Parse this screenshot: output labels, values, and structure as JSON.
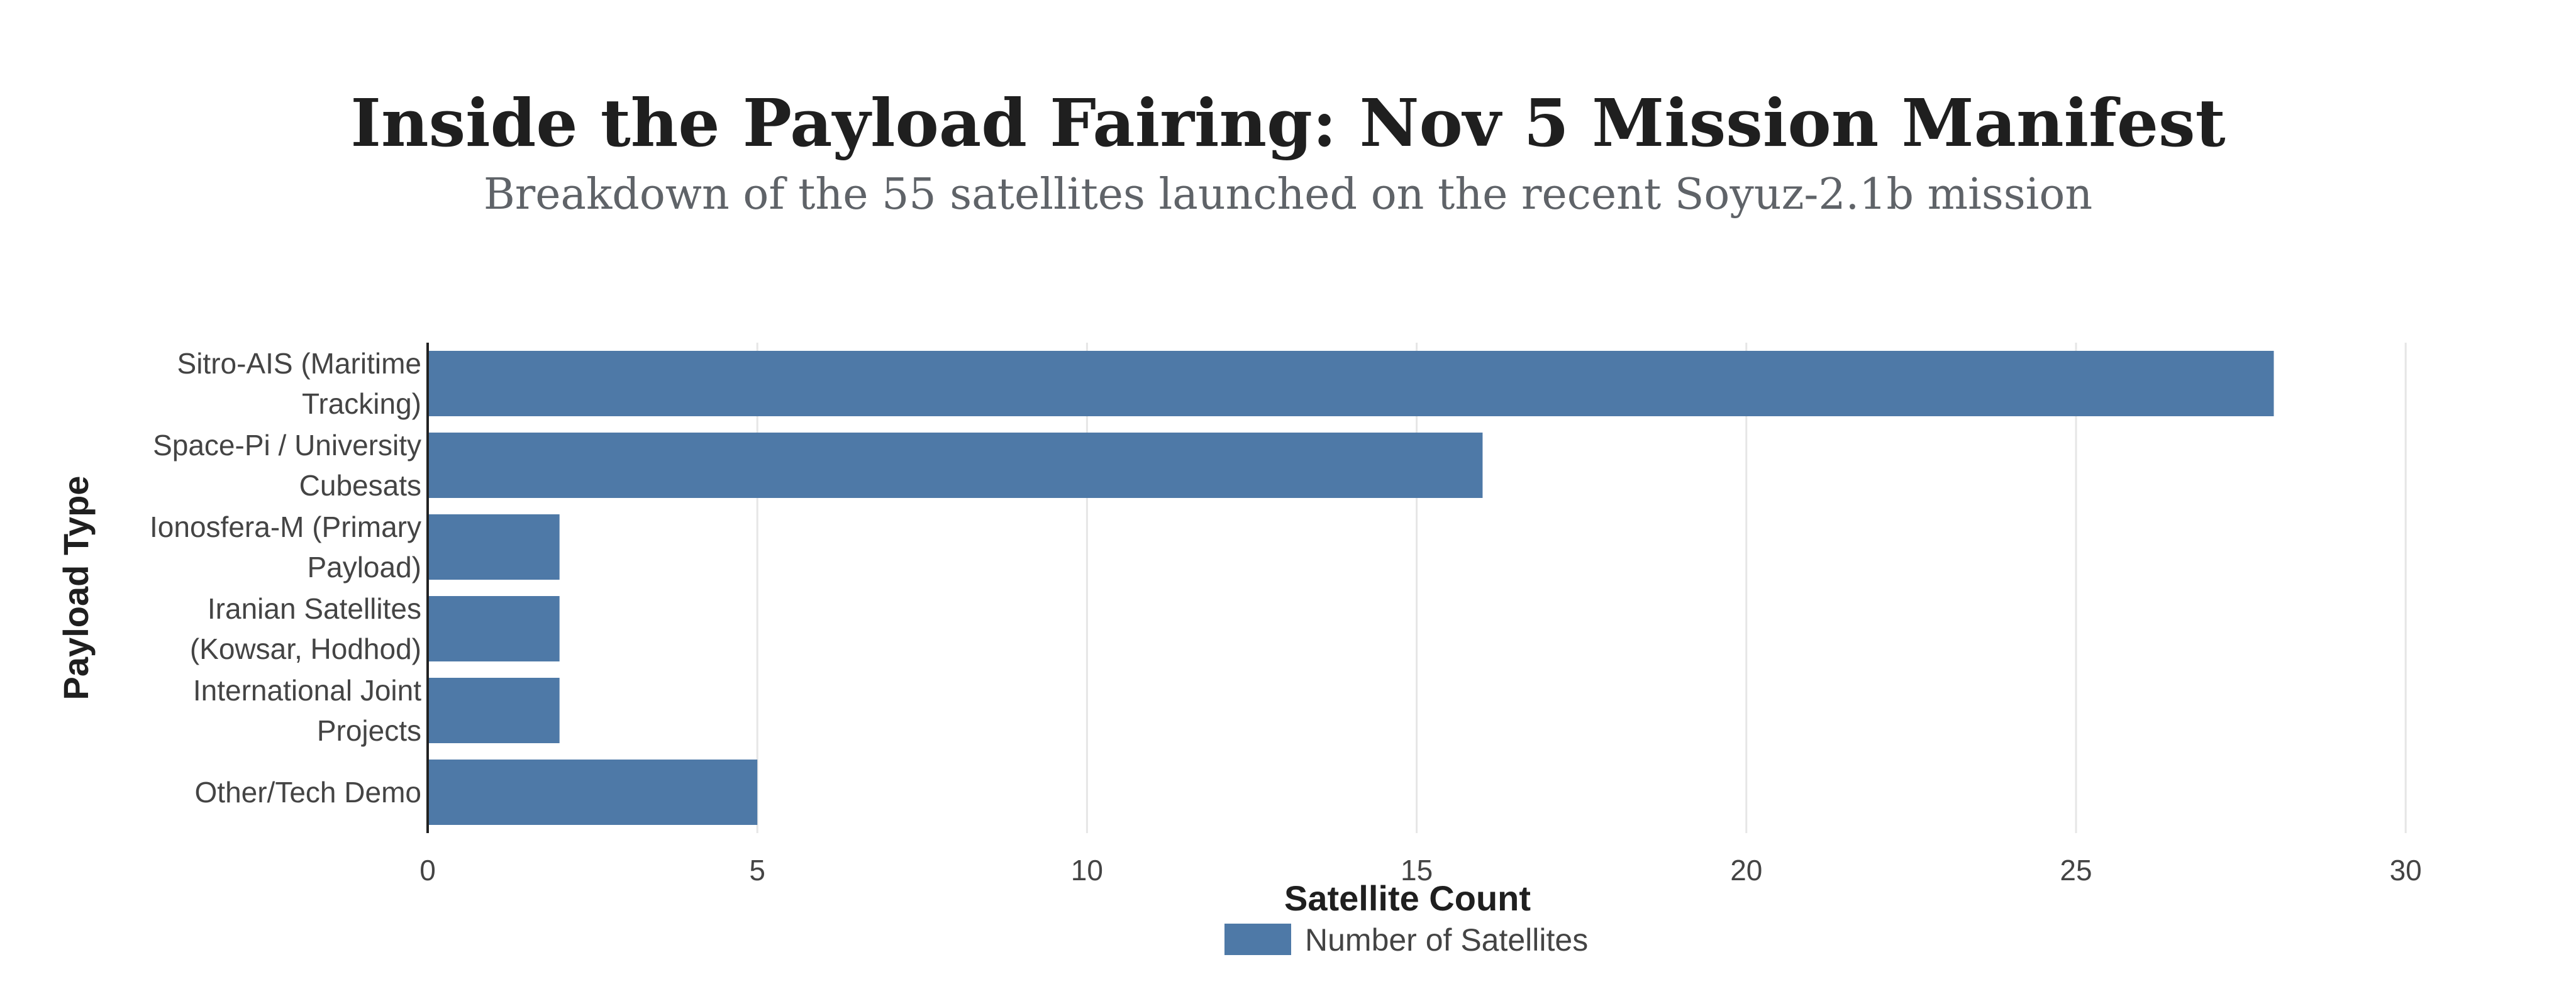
{
  "chart_data": {
    "type": "bar",
    "orientation": "horizontal",
    "title": "Inside the Payload Fairing: Nov 5 Mission Manifest",
    "subtitle": "Breakdown of the 55 satellites launched on the recent Soyuz-2.1b mission",
    "xlabel": "Satellite Count",
    "ylabel": "Payload Type",
    "xlim": [
      0,
      31
    ],
    "xticks": [
      0,
      5,
      10,
      15,
      20,
      25,
      30
    ],
    "grid": true,
    "legend_position": "bottom-center",
    "categories": [
      [
        "Sitro-AIS (Maritime",
        "Tracking)"
      ],
      [
        "Space-Pi / University",
        "Cubesats"
      ],
      [
        "Ionosfera-M (Primary",
        "Payload)"
      ],
      [
        "Iranian Satellites",
        "(Kowsar, Hodhod)"
      ],
      [
        "International Joint",
        "Projects"
      ],
      [
        "Other/Tech Demo"
      ]
    ],
    "series": [
      {
        "name": "Number of Satellites",
        "color": "#4e79a7",
        "values": [
          28,
          16,
          2,
          2,
          2,
          5
        ]
      }
    ]
  }
}
